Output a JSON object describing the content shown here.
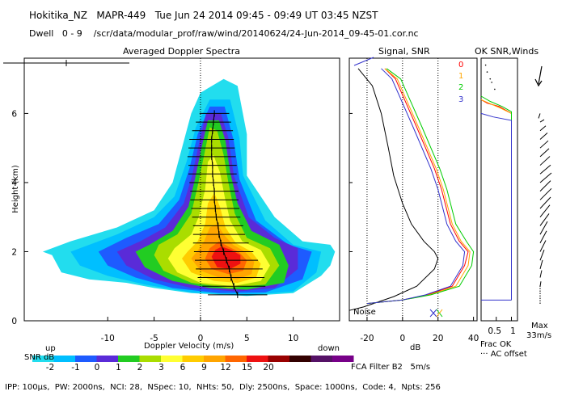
{
  "header": {
    "line1": "Hokitika_NZ   MAPR-449   Tue Jun 24 2014 09:45 - 09:49 UT 03:45 NZST",
    "line2": "Dwell   0 - 9    /scr/data/modular_prof/raw/wind/20140624/24-Jun-2014_09-45-01.cor.nc"
  },
  "footer": {
    "params": "IPP: 100μs,  PW: 2000ns,  NCI: 28,  NSpec: 10,  NHts: 50,  Dly: 2500ns,  Space: 1000ns,  Code: 4,  Npts: 256",
    "filter": "FCA Filter B2   5m/s"
  },
  "colors": {
    "snr_scale": [
      "#22ddee",
      "#00bfff",
      "#1e5bff",
      "#5a2bd8",
      "#22cc22",
      "#aadd00",
      "#ffff33",
      "#ffcc00",
      "#ffa500",
      "#ff6600",
      "#ee1111",
      "#990000",
      "#330000",
      "#551166",
      "#770088"
    ],
    "ch0": "#ff0000",
    "ch1": "#ffa500",
    "ch2": "#00cc00",
    "ch3": "#3333cc"
  },
  "colorbar": {
    "label": "SNR dB",
    "ticks": [
      "-2",
      "-1",
      "0",
      "1",
      "2",
      "3",
      "6",
      "9",
      "12",
      "15",
      "20"
    ]
  },
  "chart_data": [
    {
      "type": "heatmap",
      "title": "Averaged Doppler Spectra",
      "xlabel": "Doppler Velocity (m/s)",
      "ylabel": "Height (km)",
      "xlim": [
        -19,
        15
      ],
      "ylim": [
        0,
        7.6
      ],
      "xticks": [
        -10,
        -5,
        0,
        5,
        10
      ],
      "yticks": [
        0,
        2,
        4,
        6
      ],
      "x_left_label": "up",
      "x_right_label": "down",
      "contour_levels_db": [
        -2,
        -1,
        0,
        1,
        2,
        3,
        6,
        9,
        12,
        15,
        20
      ],
      "peak_velocity_profile": [
        {
          "h": 0.75,
          "v": 4.0
        },
        {
          "h": 1.0,
          "v": 3.6
        },
        {
          "h": 1.25,
          "v": 3.3
        },
        {
          "h": 1.5,
          "v": 3.1
        },
        {
          "h": 1.75,
          "v": 2.8
        },
        {
          "h": 2.0,
          "v": 2.5
        },
        {
          "h": 2.25,
          "v": 2.2
        },
        {
          "h": 2.5,
          "v": 2.0
        },
        {
          "h": 2.75,
          "v": 1.9
        },
        {
          "h": 3.0,
          "v": 1.7
        },
        {
          "h": 3.25,
          "v": 1.6
        },
        {
          "h": 3.5,
          "v": 1.5
        },
        {
          "h": 3.75,
          "v": 1.5
        },
        {
          "h": 4.0,
          "v": 1.4
        },
        {
          "h": 4.25,
          "v": 1.3
        },
        {
          "h": 4.5,
          "v": 1.3
        },
        {
          "h": 4.75,
          "v": 1.2
        },
        {
          "h": 5.0,
          "v": 1.2
        },
        {
          "h": 5.25,
          "v": 1.2
        },
        {
          "h": 5.5,
          "v": 1.3
        },
        {
          "h": 5.75,
          "v": 1.4
        },
        {
          "h": 6.0,
          "v": 1.5
        }
      ],
      "spectral_width": [
        {
          "h": 0.75,
          "w": 3.2
        },
        {
          "h": 1.0,
          "w": 3.4
        },
        {
          "h": 1.25,
          "w": 3.6
        },
        {
          "h": 1.5,
          "w": 3.6
        },
        {
          "h": 1.75,
          "w": 3.4
        },
        {
          "h": 2.0,
          "w": 3.2
        },
        {
          "h": 2.25,
          "w": 3.0
        },
        {
          "h": 2.5,
          "w": 2.8
        },
        {
          "h": 2.75,
          "w": 2.7
        },
        {
          "h": 3.0,
          "w": 2.6
        },
        {
          "h": 3.25,
          "w": 2.6
        },
        {
          "h": 3.5,
          "w": 2.6
        },
        {
          "h": 3.75,
          "w": 2.6
        },
        {
          "h": 4.0,
          "w": 2.6
        },
        {
          "h": 4.25,
          "w": 2.6
        },
        {
          "h": 4.5,
          "w": 2.6
        },
        {
          "h": 4.75,
          "w": 2.6
        },
        {
          "h": 5.0,
          "w": 2.5
        },
        {
          "h": 5.25,
          "w": 2.4
        },
        {
          "h": 5.5,
          "w": 2.2
        },
        {
          "h": 5.75,
          "w": 1.9
        },
        {
          "h": 6.0,
          "w": 1.6
        }
      ]
    },
    {
      "type": "line",
      "title": "Signal, SNR",
      "xlabel": "dB",
      "xlim": [
        -30,
        42
      ],
      "xticks": [
        -20,
        0,
        20,
        40
      ],
      "ylim": [
        0,
        7.6
      ],
      "noise_label": "Noise",
      "series": [
        {
          "name": "Signal",
          "color": "#000000",
          "points": [
            [
              -25,
              7.3
            ],
            [
              -17,
              6.8
            ],
            [
              -12,
              6.0
            ],
            [
              -8,
              5.0
            ],
            [
              -5,
              4.2
            ],
            [
              0,
              3.4
            ],
            [
              5,
              2.8
            ],
            [
              12,
              2.3
            ],
            [
              18,
              2.0
            ],
            [
              20,
              1.8
            ],
            [
              18,
              1.5
            ],
            [
              8,
              1.0
            ],
            [
              -5,
              0.7
            ],
            [
              -22,
              0.4
            ],
            [
              -30,
              0.3
            ]
          ]
        },
        {
          "name": "0",
          "color": "#ff0000",
          "points": [
            [
              -10,
              7.3
            ],
            [
              -4,
              7.0
            ],
            [
              8,
              5.6
            ],
            [
              18,
              4.4
            ],
            [
              22,
              3.8
            ],
            [
              27,
              2.8
            ],
            [
              32,
              2.3
            ],
            [
              37,
              2.0
            ],
            [
              35,
              1.6
            ],
            [
              28,
              1.0
            ],
            [
              14,
              0.75
            ],
            [
              0,
              0.6
            ],
            [
              -20,
              0.5
            ]
          ]
        },
        {
          "name": "1",
          "color": "#ffa500",
          "points": [
            [
              -10,
              7.3
            ],
            [
              -3,
              7.0
            ],
            [
              9,
              5.6
            ],
            [
              19,
              4.4
            ],
            [
              23,
              3.8
            ],
            [
              28,
              2.8
            ],
            [
              33,
              2.3
            ],
            [
              38,
              2.0
            ],
            [
              37,
              1.6
            ],
            [
              30,
              1.0
            ],
            [
              15,
              0.75
            ],
            [
              0,
              0.6
            ],
            [
              -20,
              0.5
            ]
          ]
        },
        {
          "name": "2",
          "color": "#00cc00",
          "points": [
            [
              -9,
              7.3
            ],
            [
              -1,
              7.0
            ],
            [
              11,
              5.6
            ],
            [
              21,
              4.4
            ],
            [
              25,
              3.8
            ],
            [
              30,
              2.8
            ],
            [
              36,
              2.3
            ],
            [
              40,
              2.0
            ],
            [
              39,
              1.6
            ],
            [
              32,
              1.0
            ],
            [
              16,
              0.75
            ],
            [
              0,
              0.6
            ],
            [
              -20,
              0.5
            ]
          ]
        },
        {
          "name": "3",
          "color": "#3333cc",
          "points": [
            [
              -12,
              7.3
            ],
            [
              -6,
              7.0
            ],
            [
              6,
              5.6
            ],
            [
              16,
              4.4
            ],
            [
              20,
              3.8
            ],
            [
              25,
              2.8
            ],
            [
              30,
              2.3
            ],
            [
              35,
              2.0
            ],
            [
              34,
              1.6
            ],
            [
              27,
              1.0
            ],
            [
              13,
              0.75
            ],
            [
              0,
              0.6
            ],
            [
              -20,
              0.5
            ]
          ]
        }
      ]
    },
    {
      "type": "line",
      "title": "OK SNR,Winds",
      "xlabel": "Frac OK",
      "xlabel2": "··· AC offset",
      "xlim": [
        0,
        1.2
      ],
      "xticks": [
        0.5,
        1
      ],
      "xtick_labels": [
        "0.5",
        "1"
      ],
      "ylim": [
        0,
        7.6
      ],
      "channels": [
        {
          "name": "0",
          "color": "#ff0000"
        },
        {
          "name": "1",
          "color": "#ffa500"
        },
        {
          "name": "2",
          "color": "#00cc00"
        },
        {
          "name": "3",
          "color": "#3333cc"
        }
      ],
      "series": [
        {
          "name": "0",
          "color": "#ff0000",
          "points": [
            [
              0,
              6.4
            ],
            [
              0.2,
              6.3
            ],
            [
              0.6,
              6.2
            ],
            [
              1.0,
              6.0
            ],
            [
              1.0,
              0.6
            ]
          ]
        },
        {
          "name": "1",
          "color": "#ffa500",
          "points": [
            [
              0,
              6.4
            ],
            [
              0.25,
              6.3
            ],
            [
              0.65,
              6.15
            ],
            [
              1.0,
              6.0
            ],
            [
              1.0,
              0.6
            ]
          ]
        },
        {
          "name": "2",
          "color": "#00cc00",
          "points": [
            [
              0,
              6.5
            ],
            [
              0.3,
              6.35
            ],
            [
              0.7,
              6.2
            ],
            [
              1.0,
              6.05
            ],
            [
              1.0,
              0.6
            ]
          ]
        },
        {
          "name": "3",
          "color": "#3333cc",
          "points": [
            [
              0,
              6.0
            ],
            [
              0.4,
              5.9
            ],
            [
              1.0,
              5.8
            ],
            [
              1.0,
              0.6
            ]
          ]
        }
      ]
    },
    {
      "type": "scatter",
      "title": "Winds",
      "xlabel": "Max",
      "xlabel2": "33m/s",
      "ylim": [
        0,
        7.6
      ],
      "wind_barbs": [
        {
          "h": 6.0,
          "dx": -2,
          "dy": -6
        },
        {
          "h": 5.75,
          "dx": 5,
          "dy": 3
        },
        {
          "h": 5.5,
          "dx": 7,
          "dy": 6
        },
        {
          "h": 5.25,
          "dx": 9,
          "dy": 8
        },
        {
          "h": 5.0,
          "dx": 10,
          "dy": 9
        },
        {
          "h": 4.75,
          "dx": 11,
          "dy": 10
        },
        {
          "h": 4.5,
          "dx": 12,
          "dy": 11
        },
        {
          "h": 4.25,
          "dx": 13,
          "dy": 11
        },
        {
          "h": 4.0,
          "dx": 14,
          "dy": 12
        },
        {
          "h": 3.75,
          "dx": 13,
          "dy": 13
        },
        {
          "h": 3.5,
          "dx": 14,
          "dy": 14
        },
        {
          "h": 3.25,
          "dx": 13,
          "dy": 14
        },
        {
          "h": 3.0,
          "dx": 12,
          "dy": 15
        },
        {
          "h": 2.75,
          "dx": 11,
          "dy": 15
        },
        {
          "h": 2.5,
          "dx": 9,
          "dy": 16
        },
        {
          "h": 2.25,
          "dx": 8,
          "dy": 15
        },
        {
          "h": 2.0,
          "dx": 7,
          "dy": 14
        },
        {
          "h": 1.75,
          "dx": 5,
          "dy": 13
        },
        {
          "h": 1.5,
          "dx": 3,
          "dy": 11
        },
        {
          "h": 1.25,
          "dx": 2,
          "dy": 9
        },
        {
          "h": 1.0,
          "dx": 1,
          "dy": 6
        }
      ]
    }
  ]
}
